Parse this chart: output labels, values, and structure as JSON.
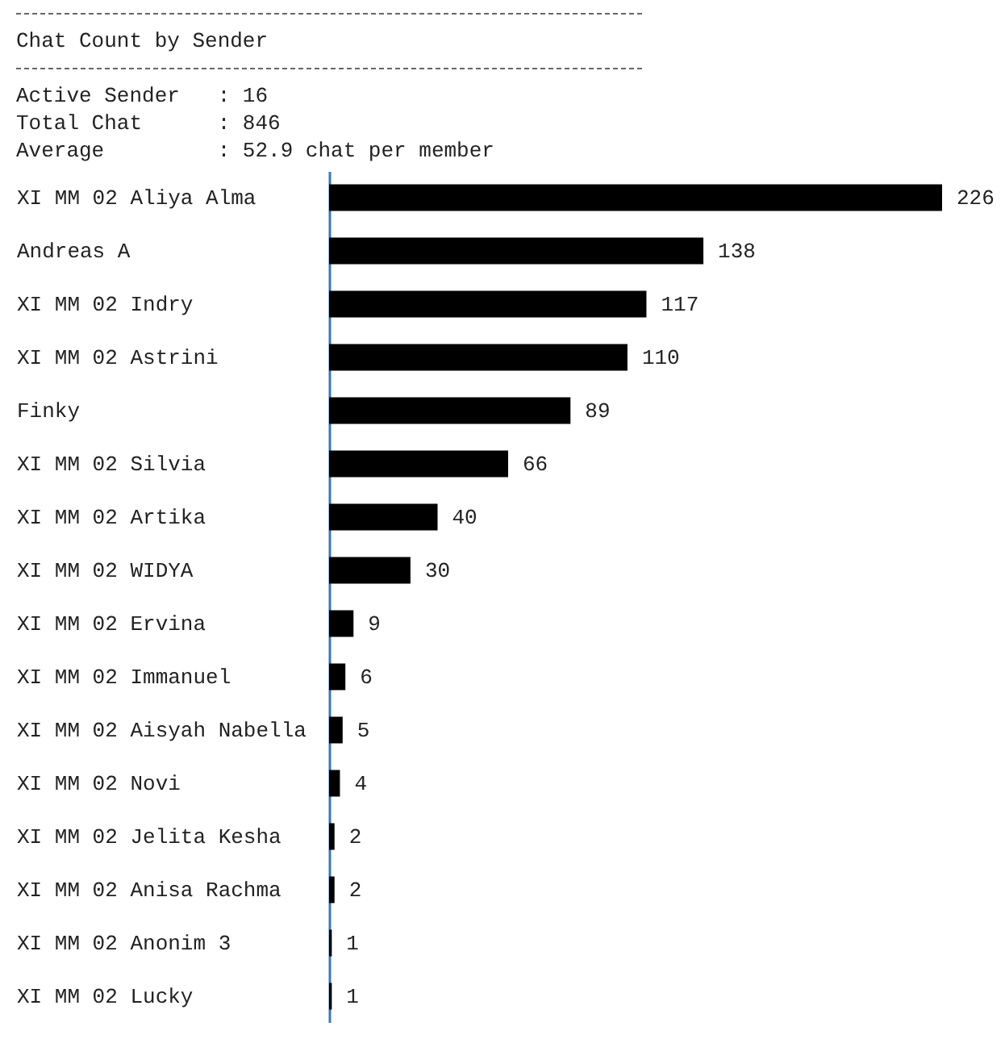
{
  "chart_data": {
    "type": "bar",
    "orientation": "horizontal",
    "title": "Chat Count by Sender",
    "annotations": [
      "Active Sender   : 16",
      "Total Chat      : 846",
      "Average         : 52.9 chat per member"
    ],
    "categories": [
      "XI MM 02 Aliya Alma",
      "Andreas A",
      "XI MM 02 Indry",
      "XI MM 02 Astrini",
      "Finky",
      "XI MM 02 Silvia",
      "XI MM 02 Artika",
      "XI MM 02 WIDYA",
      "XI MM 02 Ervina",
      "XI MM 02 Immanuel",
      "XI MM 02 Aisyah Nabella",
      "XI MM 02 Novi",
      "XI MM 02 Jelita Kesha",
      "XI MM 02 Anisa Rachma",
      "XI MM 02 Anonim 3",
      "XI MM 02 Lucky"
    ],
    "values": [
      226,
      138,
      117,
      110,
      89,
      66,
      40,
      30,
      9,
      6,
      5,
      4,
      2,
      2,
      1,
      1
    ],
    "color": "#000000",
    "data_labels": true
  }
}
